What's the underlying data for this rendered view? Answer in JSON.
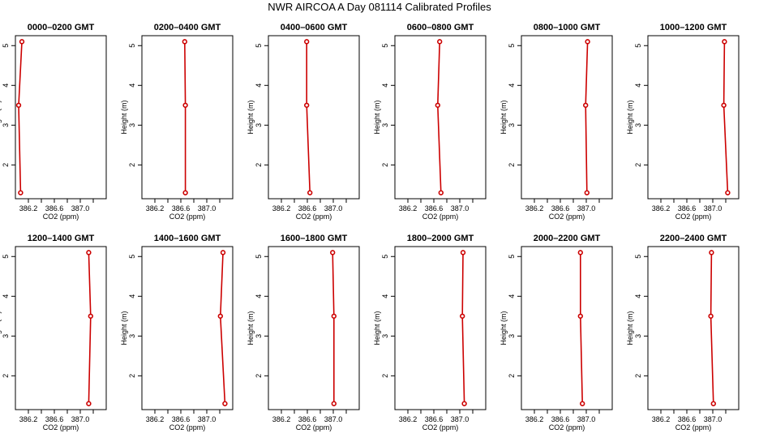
{
  "title": "NWR AIRCOA A  Day 081114  Calibrated Profiles",
  "chart_data": [
    {
      "type": "line",
      "title": "0000–0200 GMT",
      "xlabel": "CO2 (ppm)",
      "ylabel": "Height (m)",
      "xlim": [
        386.0,
        387.4
      ],
      "ylim": [
        1.15,
        5.25
      ],
      "x_ticks": [
        "386.2",
        "386.6",
        "387.0"
      ],
      "y_ticks": [
        "2",
        "3",
        "4",
        "5"
      ],
      "grid": false,
      "color": "#cc0000",
      "series": [
        {
          "x": [
            386.08,
            386.05,
            386.1
          ],
          "y": [
            1.3,
            3.5,
            5.1
          ]
        }
      ]
    },
    {
      "type": "line",
      "title": "0200–0400 GMT",
      "xlabel": "CO2 (ppm)",
      "ylabel": "Height (m)",
      "xlim": [
        386.0,
        387.4
      ],
      "ylim": [
        1.15,
        5.25
      ],
      "x_ticks": [
        "386.2",
        "386.6",
        "387.0"
      ],
      "y_ticks": [
        "2",
        "3",
        "4",
        "5"
      ],
      "grid": false,
      "color": "#cc0000",
      "series": [
        {
          "x": [
            386.67,
            386.67,
            386.66
          ],
          "y": [
            1.3,
            3.5,
            5.1
          ]
        }
      ]
    },
    {
      "type": "line",
      "title": "0400–0600 GMT",
      "xlabel": "CO2 (ppm)",
      "ylabel": "Height (m)",
      "xlim": [
        386.0,
        387.4
      ],
      "ylim": [
        1.15,
        5.25
      ],
      "x_ticks": [
        "386.2",
        "386.6",
        "387.0"
      ],
      "y_ticks": [
        "2",
        "3",
        "4",
        "5"
      ],
      "grid": false,
      "color": "#cc0000",
      "series": [
        {
          "x": [
            386.64,
            386.59,
            386.59
          ],
          "y": [
            1.3,
            3.5,
            5.1
          ]
        }
      ]
    },
    {
      "type": "line",
      "title": "0600–0800 GMT",
      "xlabel": "CO2 (ppm)",
      "ylabel": "Height (m)",
      "xlim": [
        386.0,
        387.4
      ],
      "ylim": [
        1.15,
        5.25
      ],
      "x_ticks": [
        "386.2",
        "386.6",
        "387.0"
      ],
      "y_ticks": [
        "2",
        "3",
        "4",
        "5"
      ],
      "grid": false,
      "color": "#cc0000",
      "series": [
        {
          "x": [
            386.71,
            386.66,
            386.69
          ],
          "y": [
            1.3,
            3.5,
            5.1
          ]
        }
      ]
    },
    {
      "type": "line",
      "title": "0800–1000 GMT",
      "xlabel": "CO2 (ppm)",
      "ylabel": "Height (m)",
      "xlim": [
        386.0,
        387.4
      ],
      "ylim": [
        1.15,
        5.25
      ],
      "x_ticks": [
        "386.2",
        "386.6",
        "387.0"
      ],
      "y_ticks": [
        "2",
        "3",
        "4",
        "5"
      ],
      "grid": false,
      "color": "#cc0000",
      "series": [
        {
          "x": [
            387.01,
            386.99,
            387.02
          ],
          "y": [
            1.3,
            3.5,
            5.1
          ]
        }
      ]
    },
    {
      "type": "line",
      "title": "1000–1200 GMT",
      "xlabel": "CO2 (ppm)",
      "ylabel": "Height (m)",
      "xlim": [
        386.0,
        387.4
      ],
      "ylim": [
        1.15,
        5.25
      ],
      "x_ticks": [
        "386.2",
        "386.6",
        "387.0"
      ],
      "y_ticks": [
        "2",
        "3",
        "4",
        "5"
      ],
      "grid": false,
      "color": "#cc0000",
      "series": [
        {
          "x": [
            387.23,
            387.17,
            387.18
          ],
          "y": [
            1.3,
            3.5,
            5.1
          ]
        }
      ]
    },
    {
      "type": "line",
      "title": "1200–1400 GMT",
      "xlabel": "CO2 (ppm)",
      "ylabel": "Height (m)",
      "xlim": [
        386.0,
        387.4
      ],
      "ylim": [
        1.15,
        5.25
      ],
      "x_ticks": [
        "386.2",
        "386.6",
        "387.0"
      ],
      "y_ticks": [
        "2",
        "3",
        "4",
        "5"
      ],
      "grid": false,
      "color": "#cc0000",
      "series": [
        {
          "x": [
            387.13,
            387.16,
            387.13
          ],
          "y": [
            1.3,
            3.5,
            5.1
          ]
        }
      ]
    },
    {
      "type": "line",
      "title": "1400–1600 GMT",
      "xlabel": "CO2 (ppm)",
      "ylabel": "Height (m)",
      "xlim": [
        386.0,
        387.4
      ],
      "ylim": [
        1.15,
        5.25
      ],
      "x_ticks": [
        "386.2",
        "386.6",
        "387.0"
      ],
      "y_ticks": [
        "2",
        "3",
        "4",
        "5"
      ],
      "grid": false,
      "color": "#cc0000",
      "series": [
        {
          "x": [
            387.28,
            387.21,
            387.25
          ],
          "y": [
            1.3,
            3.5,
            5.1
          ]
        }
      ]
    },
    {
      "type": "line",
      "title": "1600–1800 GMT",
      "xlabel": "CO2 (ppm)",
      "ylabel": "Height (m)",
      "xlim": [
        386.0,
        387.4
      ],
      "ylim": [
        1.15,
        5.25
      ],
      "x_ticks": [
        "386.2",
        "386.6",
        "387.0"
      ],
      "y_ticks": [
        "2",
        "3",
        "4",
        "5"
      ],
      "grid": false,
      "color": "#cc0000",
      "series": [
        {
          "x": [
            387.01,
            387.01,
            386.99
          ],
          "y": [
            1.3,
            3.5,
            5.1
          ]
        }
      ]
    },
    {
      "type": "line",
      "title": "1800–2000 GMT",
      "xlabel": "CO2 (ppm)",
      "ylabel": "Height (m)",
      "xlim": [
        386.0,
        387.4
      ],
      "ylim": [
        1.15,
        5.25
      ],
      "x_ticks": [
        "386.2",
        "386.6",
        "387.0"
      ],
      "y_ticks": [
        "2",
        "3",
        "4",
        "5"
      ],
      "grid": false,
      "color": "#cc0000",
      "series": [
        {
          "x": [
            387.07,
            387.04,
            387.05
          ],
          "y": [
            1.3,
            3.5,
            5.1
          ]
        }
      ]
    },
    {
      "type": "line",
      "title": "2000–2200 GMT",
      "xlabel": "CO2 (ppm)",
      "ylabel": "Height (m)",
      "xlim": [
        386.0,
        387.4
      ],
      "ylim": [
        1.15,
        5.25
      ],
      "x_ticks": [
        "386.2",
        "386.6",
        "387.0"
      ],
      "y_ticks": [
        "2",
        "3",
        "4",
        "5"
      ],
      "grid": false,
      "color": "#cc0000",
      "series": [
        {
          "x": [
            386.94,
            386.91,
            386.91
          ],
          "y": [
            1.3,
            3.5,
            5.1
          ]
        }
      ]
    },
    {
      "type": "line",
      "title": "2200–2400 GMT",
      "xlabel": "CO2 (ppm)",
      "ylabel": "Height (m)",
      "xlim": [
        386.0,
        387.4
      ],
      "ylim": [
        1.15,
        5.25
      ],
      "x_ticks": [
        "386.2",
        "386.6",
        "387.0"
      ],
      "y_ticks": [
        "2",
        "3",
        "4",
        "5"
      ],
      "grid": false,
      "color": "#cc0000",
      "series": [
        {
          "x": [
            387.01,
            386.97,
            386.98
          ],
          "y": [
            1.3,
            3.5,
            5.1
          ]
        }
      ]
    }
  ]
}
